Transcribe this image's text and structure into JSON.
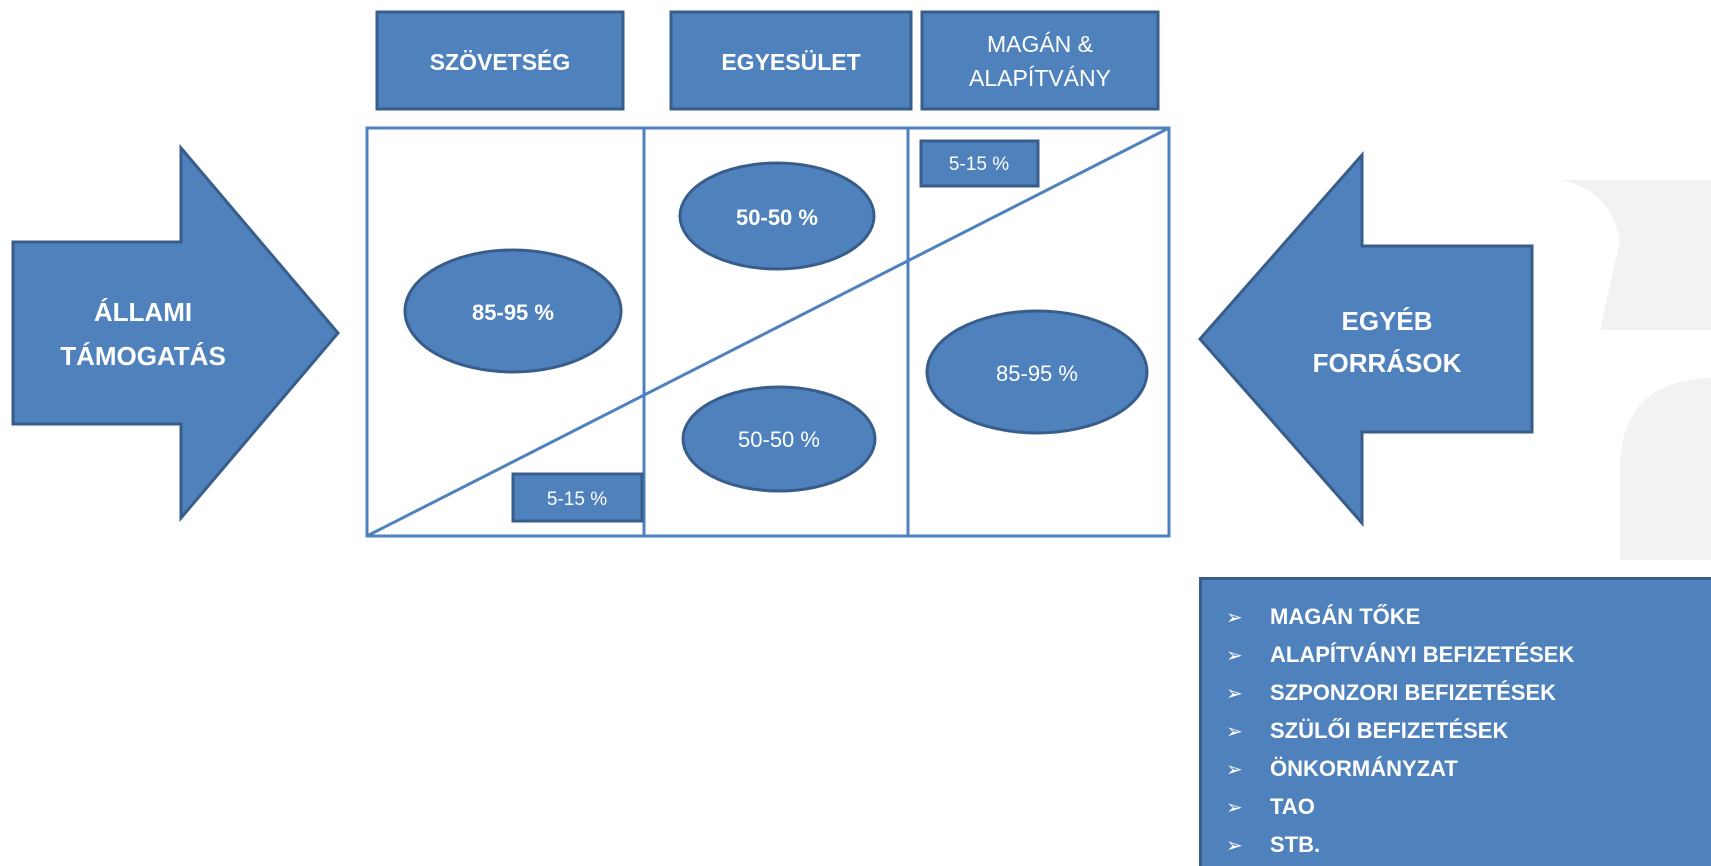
{
  "columns": {
    "szovetseg": "SZÖVETSÉG",
    "egyesulet": "EGYESÜLET",
    "magan_line1": "MAGÁN &",
    "magan_line2": "ALAPÍTVÁNY"
  },
  "left_arrow": {
    "line1": "ÁLLAMI",
    "line2": "TÁMOGATÁS"
  },
  "right_arrow": {
    "line1": "EGYÉB",
    "line2": "FORRÁSOK"
  },
  "ellipses": {
    "szovetseg_state": "85-95 %",
    "egyesulet_state": "50-50 %",
    "egyesulet_other": "50-50 %",
    "magan_other": "85-95 %"
  },
  "small_boxes": {
    "szovetseg_other": "5-15 %",
    "magan_state": "5-15 %"
  },
  "sources_bullet": "➢",
  "sources": [
    "MAGÁN TŐKE",
    "ALAPÍTVÁNYI BEFIZETÉSEK",
    "SZPONZORI BEFIZETÉSEK",
    "SZÜLŐI BEFIZETÉSEK",
    "ÖNKORMÁNYZAT",
    "TAO",
    "STB."
  ],
  "colors": {
    "fill": "#4f81bd",
    "border": "#385d8a",
    "watermark": "#f2f2f2"
  }
}
